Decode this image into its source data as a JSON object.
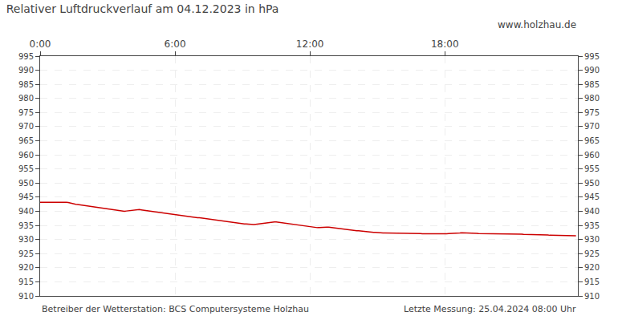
{
  "chart_data": {
    "type": "line",
    "title": "Relativer Luftdruckverlauf am 04.12.2023 in hPa",
    "annotations": [
      "www.holzhau.de",
      "Betreiber der Wetterstation: BCS Computersysteme Holzhau",
      "Letzte Messung: 25.04.2024 08:00 Uhr"
    ],
    "grid": true,
    "xlim": [
      0,
      287
    ],
    "xticks": [
      {
        "value": 0,
        "label": "0:00"
      },
      {
        "value": 72,
        "label": "6:00"
      },
      {
        "value": 144,
        "label": "12:00"
      },
      {
        "value": 216,
        "label": "18:00"
      }
    ],
    "ylim": [
      910,
      995
    ],
    "yticks": [
      910,
      915,
      920,
      925,
      930,
      935,
      940,
      945,
      950,
      955,
      960,
      965,
      970,
      975,
      980,
      985,
      990,
      995
    ],
    "y2lim": [
      910,
      995
    ],
    "y2ticks": [
      910,
      915,
      920,
      925,
      930,
      935,
      940,
      945,
      950,
      955,
      960,
      965,
      970,
      975,
      980,
      985,
      990,
      995
    ],
    "x": [
      0,
      1,
      2,
      3,
      4,
      5,
      6,
      7,
      8,
      9,
      10,
      11,
      12,
      13,
      14,
      15,
      16,
      17,
      18,
      19,
      20,
      21,
      22,
      23,
      24,
      25,
      26,
      27,
      28,
      29,
      30,
      31,
      32,
      33,
      34,
      35,
      36,
      37,
      38,
      39,
      40,
      41,
      42,
      43,
      44,
      45,
      46,
      47,
      48,
      49,
      50,
      51,
      52,
      53,
      54,
      55,
      56,
      57,
      58,
      59,
      60,
      61,
      62,
      63,
      64,
      65,
      66,
      67,
      68,
      69,
      70,
      71,
      72,
      73,
      74,
      75,
      76,
      77,
      78,
      79,
      80,
      81,
      82,
      83,
      84,
      85,
      86,
      87,
      88,
      89,
      90,
      91,
      92,
      93,
      94,
      95,
      96,
      97,
      98,
      99,
      100,
      101,
      102,
      103,
      104,
      105,
      106,
      107,
      108,
      109,
      110,
      111,
      112,
      113,
      114,
      115,
      116,
      117,
      118,
      119,
      120,
      121,
      122,
      123,
      124,
      125,
      126,
      127,
      128,
      129,
      130,
      131,
      132,
      133,
      134,
      135,
      136,
      137,
      138,
      139,
      140,
      141,
      142,
      143,
      144,
      145,
      146,
      147,
      148,
      149,
      150,
      151,
      152,
      153,
      154,
      155,
      156,
      157,
      158,
      159,
      160,
      161,
      162,
      163,
      164,
      165,
      166,
      167,
      168,
      169,
      170,
      171,
      172,
      173,
      174,
      175,
      176,
      177,
      178,
      179,
      180,
      181,
      182,
      183,
      184,
      185,
      186,
      187,
      188,
      189,
      190,
      191,
      192,
      193,
      194,
      195,
      196,
      197,
      198,
      199,
      200,
      201,
      202,
      203,
      204,
      205,
      206,
      207,
      208,
      209,
      210,
      211,
      212,
      213,
      214,
      215,
      216,
      217,
      218,
      219,
      220,
      221,
      222,
      223,
      224,
      225,
      226,
      227,
      228,
      229,
      230,
      231,
      232,
      233,
      234,
      235,
      236,
      237,
      238,
      239,
      240,
      241,
      242,
      243,
      244,
      245,
      246,
      247,
      248,
      249,
      250,
      251,
      252,
      253,
      254,
      255,
      256,
      257,
      258,
      259,
      260,
      261,
      262,
      263,
      264,
      265,
      266,
      267,
      268,
      269,
      270,
      271,
      272,
      273,
      274,
      275,
      276,
      277,
      278,
      279,
      280,
      281,
      282,
      283,
      284,
      285,
      286
    ],
    "series": [
      {
        "color": "#cc0000",
        "values": [
          943.2,
          943.2,
          943.2,
          943.3,
          943.4,
          943.4,
          943.4,
          943.4,
          943.3,
          943.2,
          943.2,
          943.2,
          943.3,
          943.3,
          943.2,
          943.1,
          942.9,
          942.8,
          942.7,
          942.5,
          942.4,
          942.3,
          942.1,
          942.0,
          942.0,
          941.9,
          941.8,
          941.7,
          941.6,
          941.4,
          941.3,
          941.2,
          941.1,
          941.0,
          940.9,
          940.8,
          940.7,
          940.6,
          940.5,
          940.4,
          940.3,
          940.2,
          940.1,
          940.0,
          940.0,
          940.0,
          940.1,
          940.2,
          940.3,
          940.4,
          940.5,
          940.5,
          940.6,
          940.6,
          940.5,
          940.4,
          940.3,
          940.2,
          940.1,
          940.0,
          939.9,
          939.8,
          939.7,
          939.6,
          939.5,
          939.4,
          939.3,
          939.2,
          939.1,
          939.0,
          938.9,
          938.8,
          938.7,
          938.6,
          938.5,
          938.4,
          938.4,
          938.3,
          938.2,
          938.1,
          938.0,
          937.9,
          937.9,
          937.8,
          937.7,
          937.7,
          937.6,
          937.5,
          937.5,
          937.4,
          937.3,
          937.2,
          937.1,
          937.0,
          936.9,
          936.8,
          936.7,
          936.6,
          936.5,
          936.4,
          936.3,
          936.2,
          936.1,
          936.0,
          935.9,
          935.8,
          935.8,
          935.7,
          935.6,
          935.5,
          935.5,
          935.4,
          935.4,
          935.3,
          935.3,
          935.4,
          935.5,
          935.5,
          935.6,
          935.7,
          935.8,
          935.9,
          936.0,
          936.1,
          936.2,
          936.2,
          936.2,
          936.1,
          936.0,
          935.9,
          935.8,
          935.7,
          935.6,
          935.5,
          935.4,
          935.3,
          935.2,
          935.1,
          935.0,
          934.9,
          934.8,
          934.7,
          934.6,
          934.5,
          934.4,
          934.3,
          934.2,
          934.2,
          934.2,
          934.2,
          934.3,
          934.3,
          934.4,
          934.4,
          934.4,
          934.3,
          934.3,
          934.2,
          934.1,
          934.0,
          933.9,
          933.8,
          933.7,
          933.6,
          933.5,
          933.4,
          933.3,
          933.3,
          933.2,
          933.1,
          933.1,
          933.0,
          932.9,
          932.9,
          932.8,
          932.7,
          932.7,
          932.6,
          932.5,
          932.5,
          932.4,
          932.4,
          932.3,
          932.3,
          932.3,
          932.3,
          932.3,
          932.3,
          932.3,
          932.3,
          932.3,
          932.3,
          932.3,
          932.3,
          932.3,
          932.2,
          932.2,
          932.2,
          932.2,
          932.1,
          932.1,
          932.1,
          932.1,
          932.1,
          932.0,
          932.0,
          932.0,
          931.9,
          931.9,
          931.9,
          931.8,
          931.8,
          931.8,
          931.8,
          931.9,
          931.9,
          932.0,
          932.0,
          932.1,
          932.1,
          932.2,
          932.2,
          932.3,
          932.3,
          932.3,
          932.4,
          932.4,
          932.4,
          932.4,
          932.3,
          932.3,
          932.2,
          932.2,
          932.2,
          932.1,
          932.1,
          932.1,
          932.0,
          932.0,
          932.0,
          932.0,
          931.9,
          931.9,
          931.9,
          931.9,
          931.9,
          931.9,
          931.9,
          931.9,
          931.9,
          932.0,
          932.0,
          932.0,
          932.0,
          932.0,
          932.0,
          931.9,
          931.9,
          931.8,
          931.8,
          931.8,
          931.8,
          931.8,
          931.7,
          931.7,
          931.7,
          931.7,
          931.7,
          931.7,
          931.6,
          931.6,
          931.6,
          931.5,
          931.5,
          931.5,
          931.5,
          931.5,
          931.5,
          931.5,
          931.5,
          931.5,
          931.5,
          931.4,
          931.4,
          931.4,
          931.4,
          931.3
        ]
      }
    ]
  }
}
